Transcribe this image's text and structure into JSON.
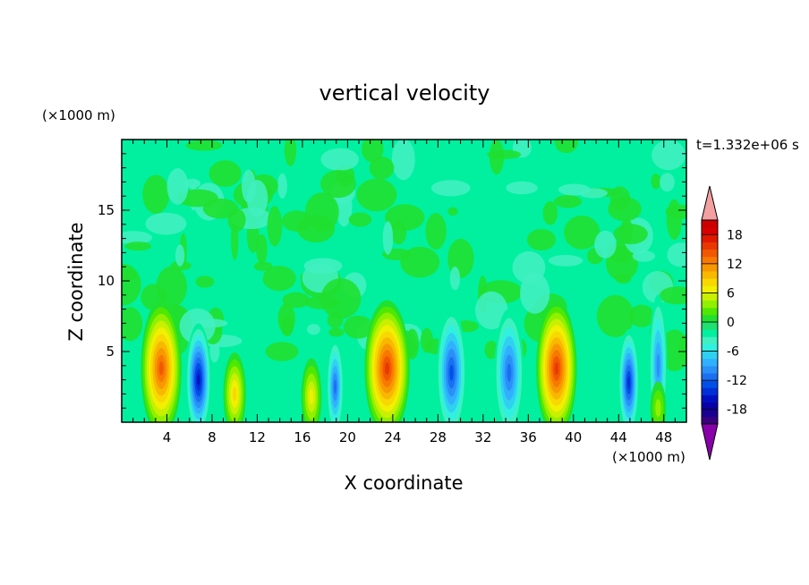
{
  "chart_data": {
    "type": "heatmap",
    "title": "vertical velocity",
    "xlabel": "X coordinate",
    "ylabel": "Z coordinate",
    "x_unit": "(×1000 m)",
    "y_unit": "(×1000 m)",
    "time_label": "t=1.332e+06 s",
    "xlim": [
      0,
      50
    ],
    "ylim": [
      0,
      20
    ],
    "x_ticks": [
      "4",
      "8",
      "12",
      "16",
      "20",
      "24",
      "28",
      "32",
      "36",
      "40",
      "44",
      "48"
    ],
    "y_ticks": [
      "5",
      "10",
      "15"
    ],
    "colorbar": {
      "levels": [
        -21,
        -19.5,
        -18,
        -16.5,
        -15,
        -13.5,
        -12,
        -10.5,
        -9,
        -7.5,
        -6,
        -4.5,
        -3,
        -1.5,
        0,
        1.5,
        3,
        4.5,
        6,
        7.5,
        9,
        10.5,
        12,
        13.5,
        15,
        16.5,
        18,
        19.5,
        21
      ],
      "colors": [
        "#3a007f",
        "#1a0090",
        "#0a00a8",
        "#0010c0",
        "#0030d8",
        "#0050e8",
        "#1a70f0",
        "#2a90f8",
        "#30b0ff",
        "#30d0f0",
        "#30f0e0",
        "#40f0c0",
        "#00f0a0",
        "#20e070",
        "#20e030",
        "#50e800",
        "#90f000",
        "#c8f000",
        "#f0f000",
        "#f8d800",
        "#f8b800",
        "#f89800",
        "#f87800",
        "#f05800",
        "#e83800",
        "#e01800",
        "#d80000",
        "#cc0000"
      ],
      "under_color": "#8800aa",
      "over_color": "#f4a0a0",
      "tick_labels": [
        "18",
        "12",
        "6",
        "0",
        "-6",
        "-12",
        "-18"
      ]
    },
    "cells": [
      {
        "x": 3.5,
        "z": 3.8,
        "w": 3.6,
        "peak": 14
      },
      {
        "x": 6.8,
        "z": 3.0,
        "w": 2.2,
        "peak": -13
      },
      {
        "x": 10.0,
        "z": 2.0,
        "w": 2.0,
        "peak": 7
      },
      {
        "x": 16.8,
        "z": 1.8,
        "w": 1.8,
        "peak": 6
      },
      {
        "x": 18.9,
        "z": 2.5,
        "w": 1.5,
        "peak": -9
      },
      {
        "x": 23.5,
        "z": 3.8,
        "w": 4.0,
        "peak": 15
      },
      {
        "x": 29.2,
        "z": 3.5,
        "w": 2.6,
        "peak": -11
      },
      {
        "x": 34.3,
        "z": 3.5,
        "w": 2.6,
        "peak": -9
      },
      {
        "x": 38.5,
        "z": 3.8,
        "w": 3.6,
        "peak": 15
      },
      {
        "x": 44.9,
        "z": 2.8,
        "w": 1.8,
        "peak": -12
      },
      {
        "x": 47.5,
        "z": 4.0,
        "w": 1.6,
        "peak": -7
      },
      {
        "x": 47.5,
        "z": 1.0,
        "w": 1.4,
        "peak": 3
      }
    ]
  }
}
